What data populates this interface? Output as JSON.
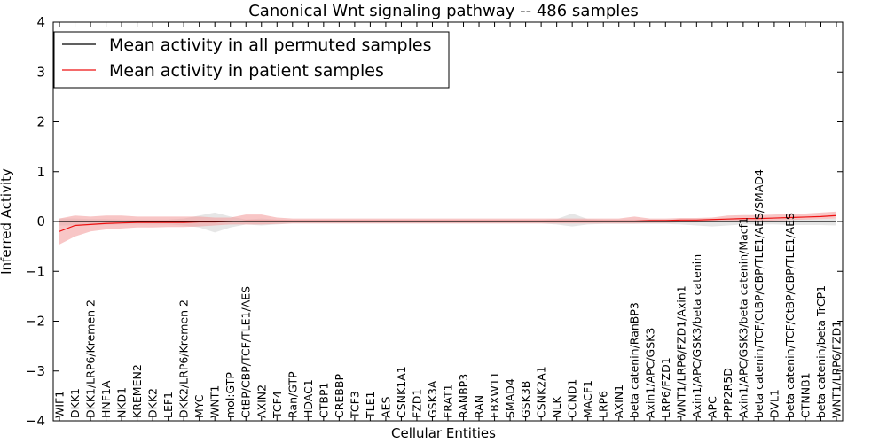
{
  "chart_data": {
    "type": "line",
    "title": "Canonical Wnt signaling pathway -- 486 samples",
    "xlabel": "Cellular Entities",
    "ylabel": "Inferred Activity",
    "ylim": [
      -4,
      4
    ],
    "yticks": [
      -4,
      -3,
      -2,
      -1,
      0,
      1,
      2,
      3,
      4
    ],
    "ytick_labels": [
      "−4",
      "−3",
      "−2",
      "−1",
      "0",
      "1",
      "2",
      "3",
      "4"
    ],
    "legend_position": "top-left",
    "categories": [
      "WIF1",
      "DKK1",
      "DKK1/LRP6/Kremen 2",
      "HNF1A",
      "NKD1",
      "KREMEN2",
      "DKK2",
      "LEF1",
      "DKK2/LRP6/Kremen 2",
      "MYC",
      "WNT1",
      "mol:GTP",
      "CtBP/CBP/TCF/TLE1/AES",
      "AXIN2",
      "TCF4",
      "Ran/GTP",
      "HDAC1",
      "CTBP1",
      "CREBBP",
      "TCF3",
      "TLE1",
      "AES",
      "CSNK1A1",
      "FZD1",
      "GSK3A",
      "FRAT1",
      "RANBP3",
      "RAN",
      "FBXW11",
      "SMAD4",
      "GSK3B",
      "CSNK2A1",
      "NLK",
      "CCND1",
      "MACF1",
      "LRP6",
      "AXIN1",
      "beta catenin/RanBP3",
      "Axin1/APC/GSK3",
      "LRP6/FZD1",
      "WNT1/LRP6/FZD1/Axin1",
      "Axin1/APC/GSK3/beta catenin",
      "APC",
      "PPP2R5D",
      "Axin1/APC/GSK3/beta catenin/Macf1",
      "beta catenin/TCF/CtBP/CBP/TLE1/AES/SMAD4",
      "DVL1",
      "beta catenin/TCF/CtBP/CBP/TLE1/AES",
      "CTNNB1",
      "beta catenin/beta TrCP1",
      "WNT1/LRP6/FZD1"
    ],
    "series": [
      {
        "name": "Mean activity in all permuted samples",
        "color": "#000000",
        "band_color": "#c8c8c8",
        "values": [
          0,
          0,
          0,
          0,
          0,
          0,
          0,
          0,
          0,
          0,
          0,
          0,
          0,
          0,
          0,
          0,
          0,
          0,
          0,
          0,
          0,
          0,
          0,
          0,
          0,
          0,
          0,
          0,
          0,
          0,
          0,
          0,
          0,
          0,
          0,
          0,
          0,
          0,
          0,
          0,
          0,
          0,
          0,
          0,
          0,
          0,
          0,
          0,
          0,
          0,
          0
        ],
        "band_lower": [
          -0.08,
          -0.08,
          -0.07,
          -0.07,
          -0.06,
          -0.06,
          -0.06,
          -0.06,
          -0.08,
          -0.12,
          -0.22,
          -0.12,
          -0.06,
          -0.08,
          -0.06,
          -0.04,
          -0.04,
          -0.04,
          -0.04,
          -0.04,
          -0.04,
          -0.04,
          -0.04,
          -0.04,
          -0.04,
          -0.04,
          -0.04,
          -0.04,
          -0.04,
          -0.04,
          -0.04,
          -0.04,
          -0.06,
          -0.1,
          -0.06,
          -0.05,
          -0.05,
          -0.05,
          -0.05,
          -0.05,
          -0.06,
          -0.08,
          -0.1,
          -0.08,
          -0.06,
          -0.06,
          -0.06,
          -0.07,
          -0.07,
          -0.07,
          -0.08
        ],
        "band_upper": [
          0.06,
          0.06,
          0.05,
          0.05,
          0.04,
          0.04,
          0.04,
          0.04,
          0.06,
          0.12,
          0.18,
          0.1,
          0.04,
          0.06,
          0.04,
          0.03,
          0.03,
          0.03,
          0.03,
          0.03,
          0.03,
          0.03,
          0.03,
          0.03,
          0.03,
          0.03,
          0.03,
          0.03,
          0.03,
          0.03,
          0.03,
          0.03,
          0.05,
          0.16,
          0.05,
          0.04,
          0.04,
          0.04,
          0.04,
          0.04,
          0.04,
          0.05,
          0.06,
          0.05,
          0.04,
          0.04,
          0.04,
          0.05,
          0.05,
          0.05,
          0.06
        ]
      },
      {
        "name": "Mean activity in patient samples",
        "color": "#ee1111",
        "band_color": "#f4a0a0",
        "values": [
          -0.2,
          -0.08,
          -0.06,
          -0.04,
          -0.03,
          -0.02,
          -0.02,
          -0.02,
          -0.02,
          -0.01,
          -0.01,
          0,
          0.01,
          0.01,
          0.01,
          0.01,
          0.01,
          0.01,
          0.01,
          0.01,
          0.01,
          0.01,
          0.01,
          0.01,
          0.01,
          0.01,
          0.01,
          0.01,
          0.01,
          0.01,
          0.01,
          0.01,
          0.01,
          0.01,
          0.01,
          0.01,
          0.01,
          0.01,
          0.02,
          0.02,
          0.03,
          0.03,
          0.04,
          0.05,
          0.06,
          0.06,
          0.07,
          0.08,
          0.09,
          0.1,
          0.12
        ],
        "band_lower": [
          -0.46,
          -0.3,
          -0.2,
          -0.16,
          -0.14,
          -0.12,
          -0.12,
          -0.11,
          -0.11,
          -0.1,
          -0.08,
          -0.06,
          -0.06,
          -0.06,
          -0.05,
          -0.04,
          -0.04,
          -0.04,
          -0.04,
          -0.04,
          -0.04,
          -0.04,
          -0.04,
          -0.04,
          -0.04,
          -0.04,
          -0.04,
          -0.04,
          -0.04,
          -0.04,
          -0.04,
          -0.04,
          -0.04,
          -0.04,
          -0.04,
          -0.04,
          -0.04,
          -0.04,
          -0.03,
          -0.03,
          -0.02,
          -0.02,
          -0.01,
          0,
          0.01,
          0.01,
          0.02,
          0.03,
          0.04,
          0.05,
          0.06
        ],
        "band_upper": [
          0.06,
          0.12,
          0.1,
          0.12,
          0.12,
          0.1,
          0.1,
          0.1,
          0.1,
          0.1,
          0.08,
          0.08,
          0.14,
          0.14,
          0.08,
          0.06,
          0.06,
          0.06,
          0.06,
          0.06,
          0.06,
          0.06,
          0.06,
          0.06,
          0.06,
          0.06,
          0.06,
          0.06,
          0.06,
          0.06,
          0.06,
          0.06,
          0.06,
          0.06,
          0.06,
          0.06,
          0.06,
          0.1,
          0.06,
          0.06,
          0.07,
          0.07,
          0.08,
          0.12,
          0.13,
          0.13,
          0.14,
          0.15,
          0.16,
          0.18,
          0.2
        ]
      }
    ]
  }
}
